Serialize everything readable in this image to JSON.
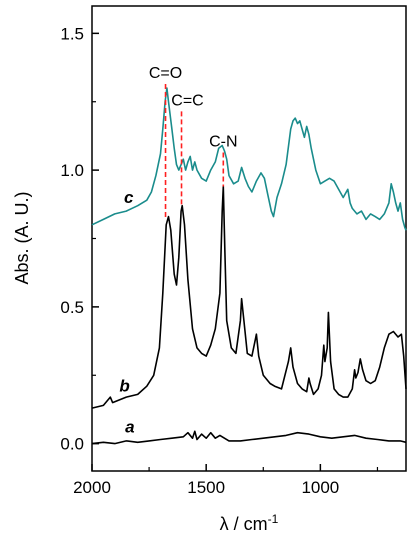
{
  "chart_data": {
    "type": "line",
    "title": "",
    "xlabel": "λ / cm",
    "xlabel_sup": "-1",
    "ylabel": "Abs. (A. U.)",
    "xlim": [
      2000,
      625
    ],
    "ylim": [
      -0.1,
      1.6
    ],
    "x_reversed": true,
    "x_ticks": [
      2000,
      1500,
      1000
    ],
    "y_ticks": [
      0.0,
      0.5,
      1.0,
      1.5
    ],
    "y_tick_labels": [
      "0.0",
      "0.5",
      "1.0",
      "1.5"
    ],
    "grid": false,
    "series": [
      {
        "name": "a",
        "color": "#000000",
        "points": [
          [
            2000,
            0.0
          ],
          [
            1950,
            0.005
          ],
          [
            1900,
            0.0
          ],
          [
            1850,
            0.01
          ],
          [
            1800,
            0.005
          ],
          [
            1750,
            0.01
          ],
          [
            1700,
            0.015
          ],
          [
            1650,
            0.02
          ],
          [
            1600,
            0.025
          ],
          [
            1580,
            0.04
          ],
          [
            1560,
            0.02
          ],
          [
            1550,
            0.045
          ],
          [
            1540,
            0.015
          ],
          [
            1520,
            0.035
          ],
          [
            1500,
            0.02
          ],
          [
            1480,
            0.04
          ],
          [
            1460,
            0.02
          ],
          [
            1440,
            0.03
          ],
          [
            1400,
            0.01
          ],
          [
            1350,
            0.01
          ],
          [
            1300,
            0.015
          ],
          [
            1250,
            0.02
          ],
          [
            1200,
            0.025
          ],
          [
            1150,
            0.03
          ],
          [
            1100,
            0.04
          ],
          [
            1050,
            0.035
          ],
          [
            1000,
            0.025
          ],
          [
            950,
            0.02
          ],
          [
            900,
            0.025
          ],
          [
            850,
            0.03
          ],
          [
            800,
            0.02
          ],
          [
            750,
            0.015
          ],
          [
            700,
            0.01
          ],
          [
            650,
            0.01
          ],
          [
            625,
            0.005
          ]
        ]
      },
      {
        "name": "b",
        "color": "#000000",
        "points": [
          [
            2000,
            0.13
          ],
          [
            1950,
            0.14
          ],
          [
            1920,
            0.17
          ],
          [
            1910,
            0.15
          ],
          [
            1880,
            0.16
          ],
          [
            1850,
            0.17
          ],
          [
            1800,
            0.18
          ],
          [
            1760,
            0.21
          ],
          [
            1730,
            0.25
          ],
          [
            1705,
            0.35
          ],
          [
            1690,
            0.55
          ],
          [
            1675,
            0.8
          ],
          [
            1665,
            0.83
          ],
          [
            1655,
            0.78
          ],
          [
            1640,
            0.62
          ],
          [
            1630,
            0.58
          ],
          [
            1620,
            0.68
          ],
          [
            1610,
            0.85
          ],
          [
            1605,
            0.87
          ],
          [
            1595,
            0.8
          ],
          [
            1580,
            0.6
          ],
          [
            1560,
            0.42
          ],
          [
            1540,
            0.35
          ],
          [
            1520,
            0.33
          ],
          [
            1500,
            0.32
          ],
          [
            1480,
            0.36
          ],
          [
            1460,
            0.42
          ],
          [
            1440,
            0.55
          ],
          [
            1430,
            0.85
          ],
          [
            1425,
            0.94
          ],
          [
            1418,
            0.7
          ],
          [
            1410,
            0.45
          ],
          [
            1390,
            0.35
          ],
          [
            1370,
            0.33
          ],
          [
            1350,
            0.45
          ],
          [
            1345,
            0.53
          ],
          [
            1335,
            0.45
          ],
          [
            1320,
            0.33
          ],
          [
            1300,
            0.32
          ],
          [
            1285,
            0.38
          ],
          [
            1280,
            0.4
          ],
          [
            1270,
            0.32
          ],
          [
            1250,
            0.25
          ],
          [
            1220,
            0.22
          ],
          [
            1200,
            0.21
          ],
          [
            1170,
            0.2
          ],
          [
            1140,
            0.3
          ],
          [
            1130,
            0.35
          ],
          [
            1120,
            0.28
          ],
          [
            1100,
            0.22
          ],
          [
            1080,
            0.2
          ],
          [
            1060,
            0.19
          ],
          [
            1050,
            0.24
          ],
          [
            1045,
            0.22
          ],
          [
            1030,
            0.18
          ],
          [
            1010,
            0.2
          ],
          [
            995,
            0.25
          ],
          [
            985,
            0.36
          ],
          [
            980,
            0.3
          ],
          [
            970,
            0.35
          ],
          [
            965,
            0.48
          ],
          [
            955,
            0.3
          ],
          [
            940,
            0.2
          ],
          [
            920,
            0.18
          ],
          [
            900,
            0.17
          ],
          [
            880,
            0.17
          ],
          [
            860,
            0.2
          ],
          [
            850,
            0.27
          ],
          [
            845,
            0.24
          ],
          [
            835,
            0.26
          ],
          [
            825,
            0.31
          ],
          [
            815,
            0.27
          ],
          [
            800,
            0.23
          ],
          [
            780,
            0.22
          ],
          [
            760,
            0.23
          ],
          [
            740,
            0.28
          ],
          [
            720,
            0.35
          ],
          [
            700,
            0.4
          ],
          [
            680,
            0.41
          ],
          [
            660,
            0.39
          ],
          [
            645,
            0.4
          ],
          [
            635,
            0.32
          ],
          [
            625,
            0.2
          ]
        ]
      },
      {
        "name": "c",
        "color": "#1a8c8c",
        "points": [
          [
            2000,
            0.8
          ],
          [
            1950,
            0.82
          ],
          [
            1900,
            0.84
          ],
          [
            1850,
            0.85
          ],
          [
            1800,
            0.87
          ],
          [
            1760,
            0.89
          ],
          [
            1740,
            0.92
          ],
          [
            1720,
            0.98
          ],
          [
            1700,
            1.06
          ],
          [
            1690,
            1.15
          ],
          [
            1680,
            1.25
          ],
          [
            1672,
            1.3
          ],
          [
            1665,
            1.25
          ],
          [
            1650,
            1.15
          ],
          [
            1640,
            1.08
          ],
          [
            1630,
            1.02
          ],
          [
            1620,
            1.0
          ],
          [
            1610,
            1.02
          ],
          [
            1600,
            1.04
          ],
          [
            1590,
            1.0
          ],
          [
            1580,
            1.03
          ],
          [
            1570,
            1.05
          ],
          [
            1560,
            1.0
          ],
          [
            1550,
            1.03
          ],
          [
            1540,
            1.0
          ],
          [
            1520,
            0.97
          ],
          [
            1500,
            0.96
          ],
          [
            1480,
            1.0
          ],
          [
            1460,
            1.03
          ],
          [
            1445,
            1.08
          ],
          [
            1430,
            1.09
          ],
          [
            1420,
            1.07
          ],
          [
            1410,
            1.04
          ],
          [
            1400,
            0.98
          ],
          [
            1380,
            0.95
          ],
          [
            1360,
            0.96
          ],
          [
            1345,
            1.01
          ],
          [
            1330,
            0.97
          ],
          [
            1315,
            0.94
          ],
          [
            1300,
            0.92
          ],
          [
            1280,
            0.96
          ],
          [
            1260,
            0.99
          ],
          [
            1245,
            0.97
          ],
          [
            1230,
            0.91
          ],
          [
            1215,
            0.85
          ],
          [
            1205,
            0.83
          ],
          [
            1190,
            0.9
          ],
          [
            1170,
            0.95
          ],
          [
            1150,
            1.02
          ],
          [
            1130,
            1.15
          ],
          [
            1120,
            1.18
          ],
          [
            1110,
            1.19
          ],
          [
            1100,
            1.17
          ],
          [
            1090,
            1.18
          ],
          [
            1080,
            1.15
          ],
          [
            1070,
            1.12
          ],
          [
            1060,
            1.16
          ],
          [
            1050,
            1.13
          ],
          [
            1040,
            1.08
          ],
          [
            1020,
            1.0
          ],
          [
            1000,
            0.95
          ],
          [
            980,
            0.96
          ],
          [
            960,
            0.97
          ],
          [
            940,
            0.96
          ],
          [
            920,
            0.93
          ],
          [
            900,
            0.9
          ],
          [
            880,
            0.93
          ],
          [
            870,
            0.88
          ],
          [
            860,
            0.86
          ],
          [
            840,
            0.84
          ],
          [
            820,
            0.85
          ],
          [
            800,
            0.82
          ],
          [
            780,
            0.84
          ],
          [
            760,
            0.83
          ],
          [
            740,
            0.82
          ],
          [
            720,
            0.84
          ],
          [
            700,
            0.88
          ],
          [
            690,
            0.95
          ],
          [
            680,
            0.92
          ],
          [
            670,
            0.88
          ],
          [
            660,
            0.85
          ],
          [
            650,
            0.88
          ],
          [
            640,
            0.82
          ],
          [
            630,
            0.79
          ],
          [
            625,
            0.78
          ]
        ]
      }
    ],
    "peak_markers": [
      {
        "label": "C=O",
        "x": 1678,
        "y_top": 1.3,
        "y_bottom": 0.82,
        "color": "#ff2020"
      },
      {
        "label": "C=C",
        "x": 1608,
        "y_top": 1.2,
        "y_bottom": 0.87,
        "color": "#ff2020"
      },
      {
        "label": "C-N",
        "x": 1425,
        "y_top": 1.05,
        "y_bottom": 0.94,
        "color": "#ff2020"
      }
    ]
  }
}
